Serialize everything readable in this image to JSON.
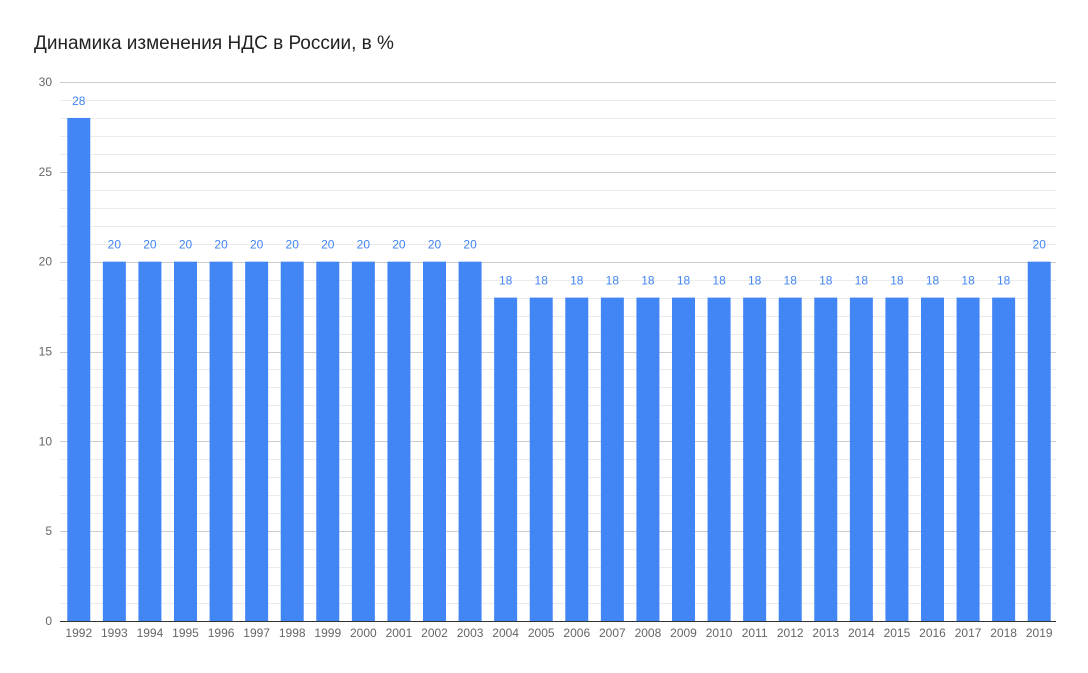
{
  "title": "Динамика изменения НДС в России, в %",
  "colors": {
    "bar": "#4285f4",
    "label": "#4285f4",
    "grid_major": "#cccccc",
    "grid_minor": "#ebebeb",
    "axis_text": "#666666"
  },
  "chart_data": {
    "type": "bar",
    "title": "Динамика изменения НДС в России, в %",
    "xlabel": "",
    "ylabel": "",
    "ylim": [
      0,
      30
    ],
    "yticks": [
      0,
      5,
      10,
      15,
      20,
      25,
      30
    ],
    "grid": true,
    "legend": "none",
    "categories": [
      "1992",
      "1993",
      "1994",
      "1995",
      "1996",
      "1997",
      "1998",
      "1999",
      "2000",
      "2001",
      "2002",
      "2003",
      "2004",
      "2005",
      "2006",
      "2007",
      "2008",
      "2009",
      "2010",
      "2011",
      "2012",
      "2013",
      "2014",
      "2015",
      "2016",
      "2017",
      "2018",
      "2019"
    ],
    "values": [
      28,
      20,
      20,
      20,
      20,
      20,
      20,
      20,
      20,
      20,
      20,
      20,
      18,
      18,
      18,
      18,
      18,
      18,
      18,
      18,
      18,
      18,
      18,
      18,
      18,
      18,
      18,
      20
    ]
  }
}
